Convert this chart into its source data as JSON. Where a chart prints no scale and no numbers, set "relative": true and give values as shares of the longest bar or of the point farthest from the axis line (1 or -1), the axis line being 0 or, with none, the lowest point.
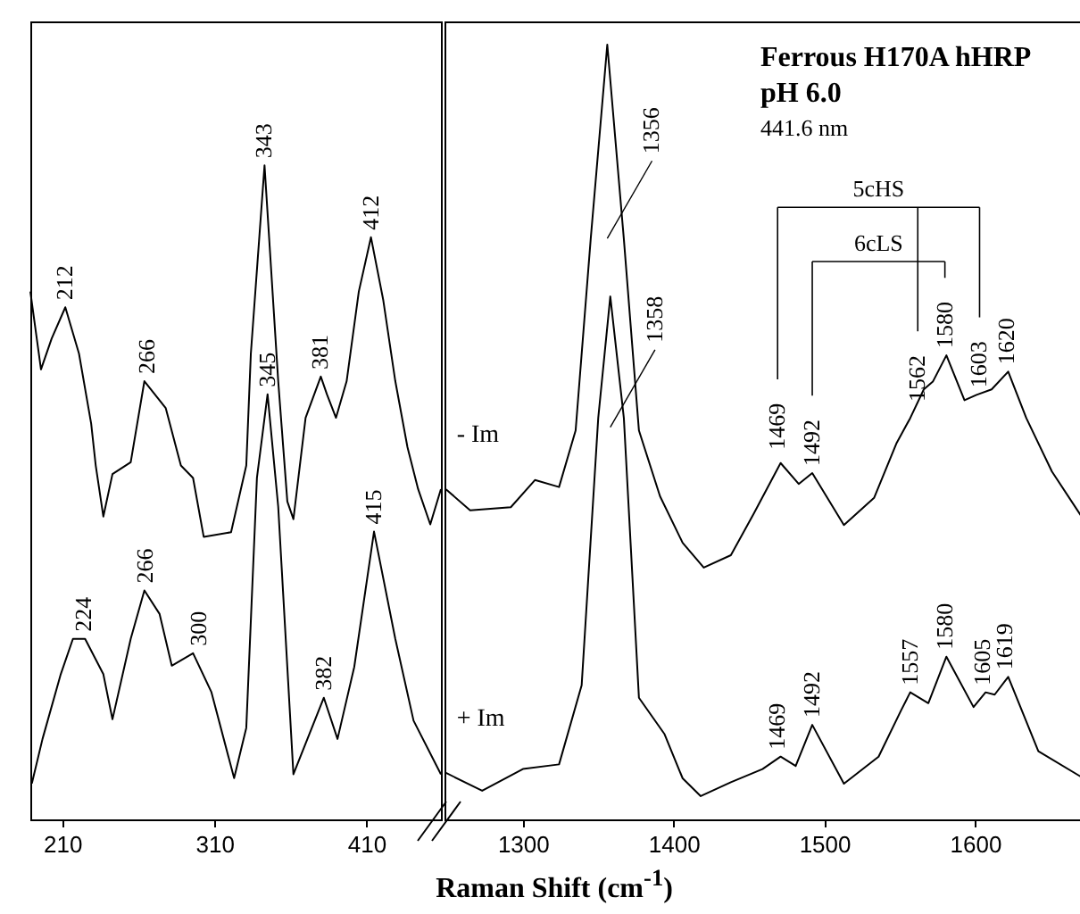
{
  "chart_data": [
    {
      "type": "line",
      "relative": true,
      "xlim": [
        189,
        459
      ],
      "xticks": [
        210,
        310,
        410
      ],
      "tick_labels": "x",
      "series": [
        {
          "color": "#000000",
          "x": [
            189,
            196,
            203,
            212,
            221,
            229,
            232,
            237,
            243,
            255,
            264,
            278,
            288,
            296,
            303,
            321,
            331,
            334,
            343,
            352,
            358,
            362,
            370,
            380,
            384,
            390,
            397,
            405,
            413,
            421,
            429,
            437,
            444,
            452,
            459
          ],
          "values": [
            0.807,
            0.688,
            0.735,
            0.783,
            0.712,
            0.605,
            0.541,
            0.463,
            0.528,
            0.546,
            0.67,
            0.629,
            0.541,
            0.522,
            0.432,
            0.439,
            0.541,
            0.712,
            1.0,
            0.67,
            0.486,
            0.459,
            0.614,
            0.677,
            0.65,
            0.614,
            0.67,
            0.807,
            0.89,
            0.795,
            0.67,
            0.569,
            0.505,
            0.451,
            0.505
          ]
        },
        {
          "color": "#000000",
          "x": [
            190,
            197,
            209,
            217,
            225,
            237,
            243,
            255,
            264,
            274,
            282,
            296,
            308,
            323,
            331,
            338,
            345,
            352,
            362,
            382,
            391,
            402,
            415,
            429,
            441,
            459
          ],
          "values": [
            0.055,
            0.123,
            0.222,
            0.276,
            0.276,
            0.222,
            0.153,
            0.276,
            0.35,
            0.314,
            0.235,
            0.254,
            0.195,
            0.063,
            0.14,
            0.522,
            0.65,
            0.478,
            0.069,
            0.186,
            0.123,
            0.233,
            0.44,
            0.276,
            0.151,
            0.069
          ]
        }
      ],
      "annotations": [
        {
          "text": "212",
          "x": 212,
          "y": 0.783
        },
        {
          "text": "266",
          "x": 266,
          "y": 0.67
        },
        {
          "text": "343",
          "x": 343,
          "y": 1.0
        },
        {
          "text": "381",
          "x": 380,
          "y": 0.677
        },
        {
          "text": "412",
          "x": 413,
          "y": 0.89
        },
        {
          "text": "224",
          "x": 224,
          "y": 0.276
        },
        {
          "text": "266",
          "x": 265,
          "y": 0.35
        },
        {
          "text": "300",
          "x": 300,
          "y": 0.254
        },
        {
          "text": "345",
          "x": 345,
          "y": 0.65
        },
        {
          "text": "382",
          "x": 382,
          "y": 0.186
        },
        {
          "text": "415",
          "x": 415,
          "y": 0.44
        }
      ]
    },
    {
      "type": "line",
      "relative": true,
      "title": "Ferrous H170A hHRP",
      "subtitle": "pH 6.0",
      "xlabel": "Raman Shift (cm$^{-1}$)",
      "xlim": [
        1248,
        1672
      ],
      "xticks": [
        1300,
        1400,
        1500,
        1600
      ],
      "tick_labels": "x",
      "series": [
        {
          "name": "- Im",
          "color": "#000000",
          "x": [
            1249,
            1265,
            1292,
            1308,
            1324,
            1335,
            1345,
            1356,
            1367,
            1377,
            1391,
            1406,
            1420,
            1438,
            1453,
            1471,
            1483,
            1492,
            1513,
            1533,
            1548,
            1557,
            1566,
            1572,
            1581,
            1593,
            1601,
            1611,
            1622,
            1634,
            1651,
            1672
          ],
          "values": [
            0.426,
            0.399,
            0.403,
            0.438,
            0.429,
            0.502,
            0.749,
            1.0,
            0.749,
            0.502,
            0.417,
            0.357,
            0.325,
            0.341,
            0.394,
            0.46,
            0.433,
            0.447,
            0.38,
            0.415,
            0.486,
            0.518,
            0.555,
            0.565,
            0.599,
            0.541,
            0.548,
            0.555,
            0.578,
            0.518,
            0.449,
            0.387
          ]
        },
        {
          "name": "+ Im",
          "color": "#000000",
          "x": [
            1249,
            1273,
            1300,
            1324,
            1339,
            1350,
            1358,
            1367,
            1377,
            1394,
            1406,
            1418,
            1438,
            1459,
            1471,
            1481,
            1492,
            1513,
            1536,
            1551,
            1557,
            1569,
            1581,
            1599,
            1607,
            1613,
            1622,
            1642,
            1672
          ],
          "values": [
            0.06,
            0.037,
            0.065,
            0.071,
            0.173,
            0.518,
            0.675,
            0.518,
            0.157,
            0.11,
            0.053,
            0.03,
            0.048,
            0.065,
            0.081,
            0.069,
            0.122,
            0.046,
            0.081,
            0.141,
            0.164,
            0.15,
            0.21,
            0.145,
            0.164,
            0.161,
            0.184,
            0.088,
            0.053
          ]
        }
      ],
      "annotations": [
        "441.6 nm",
        "5cHS",
        "6cLS",
        {
          "text": "1356",
          "x": 1356,
          "y": 1.0
        },
        {
          "text": "1469",
          "x": 1469,
          "y": 0.468
        },
        {
          "text": "1492",
          "x": 1492,
          "y": 0.447
        },
        {
          "text": "1562",
          "x": 1562,
          "y": 0.53
        },
        {
          "text": "1580",
          "x": 1580,
          "y": 0.599
        },
        {
          "text": "1603",
          "x": 1603,
          "y": 0.548
        },
        {
          "text": "1620",
          "x": 1621,
          "y": 0.578
        },
        {
          "text": "1358",
          "x": 1358,
          "y": 0.675
        },
        {
          "text": "1469",
          "x": 1469,
          "y": 0.081
        },
        {
          "text": "1492",
          "x": 1492,
          "y": 0.122
        },
        {
          "text": "1557",
          "x": 1557,
          "y": 0.164
        },
        {
          "text": "1580",
          "x": 1580,
          "y": 0.21
        },
        {
          "text": "1605",
          "x": 1605,
          "y": 0.164
        },
        {
          "text": "1619",
          "x": 1620,
          "y": 0.184
        }
      ]
    }
  ]
}
